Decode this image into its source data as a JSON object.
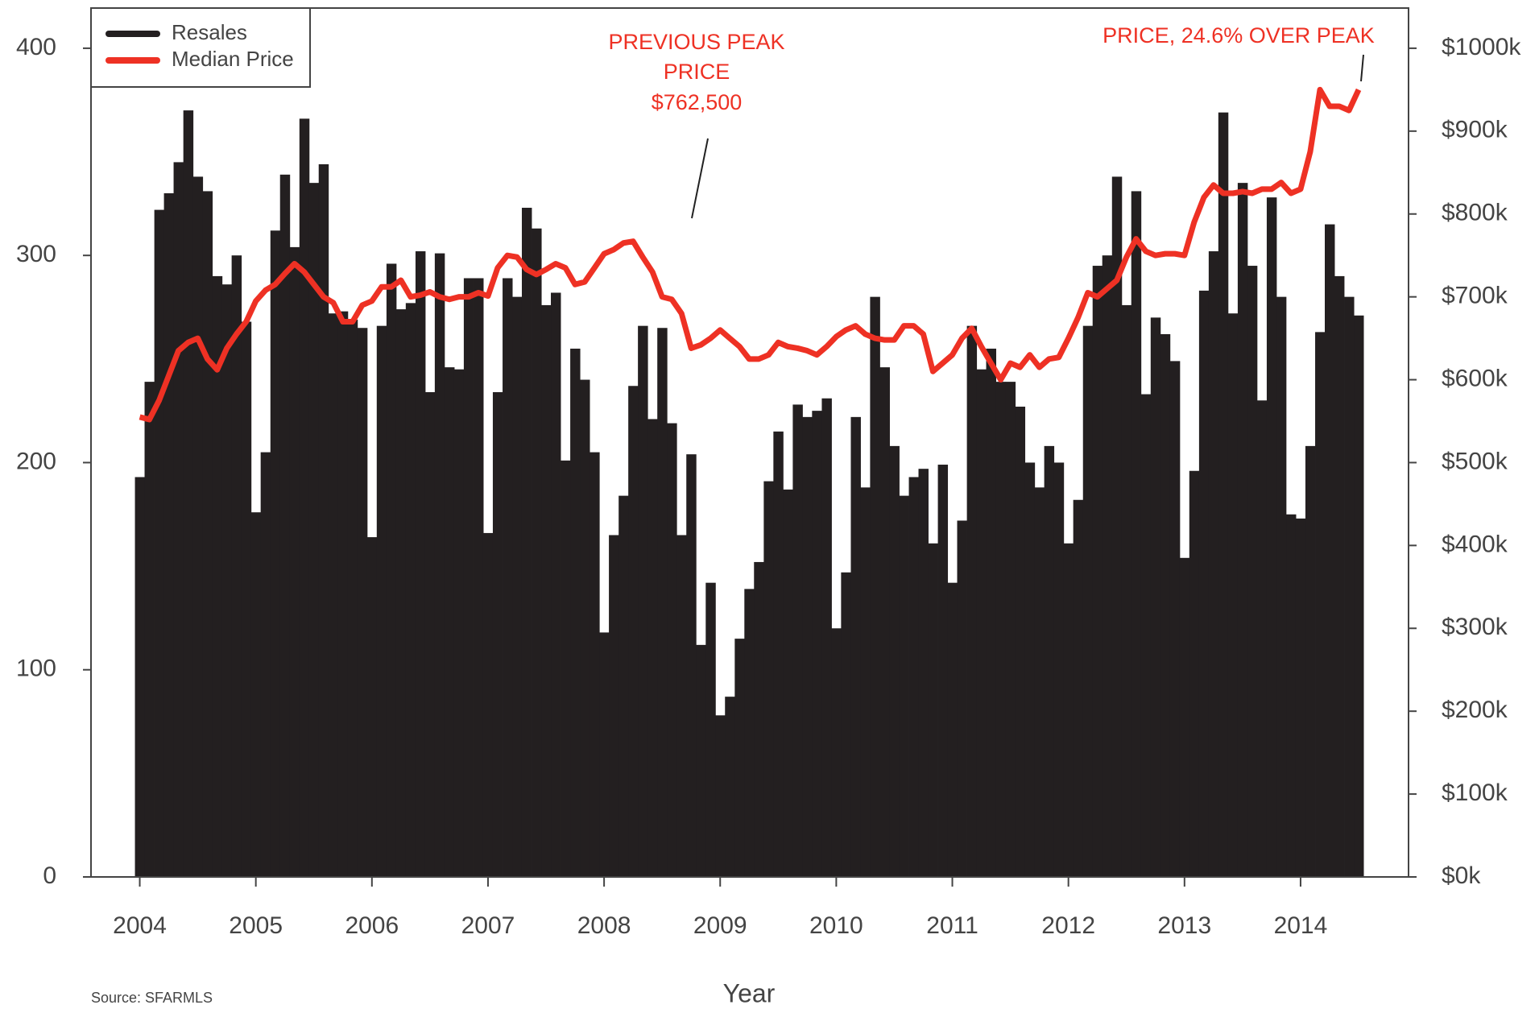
{
  "chart_data": {
    "type": "bar+line",
    "xlabel": "Year",
    "source": "Source: SFARMLS",
    "annotations": [
      [
        "PREVIOUS PEAK",
        "PRICE",
        "$762,500"
      ],
      [
        "PRICE, 24.6% OVER PEAK"
      ]
    ],
    "x": [
      2004,
      2004.083,
      2004.167,
      2004.25,
      2004.333,
      2004.417,
      2004.5,
      2004.583,
      2004.667,
      2004.75,
      2004.833,
      2004.917,
      2005,
      2005.083,
      2005.167,
      2005.25,
      2005.333,
      2005.417,
      2005.5,
      2005.583,
      2005.667,
      2005.75,
      2005.833,
      2005.917,
      2006,
      2006.083,
      2006.167,
      2006.25,
      2006.333,
      2006.417,
      2006.5,
      2006.583,
      2006.667,
      2006.75,
      2006.833,
      2006.917,
      2007,
      2007.083,
      2007.167,
      2007.25,
      2007.333,
      2007.417,
      2007.5,
      2007.583,
      2007.667,
      2007.75,
      2007.833,
      2007.917,
      2008,
      2008.083,
      2008.167,
      2008.25,
      2008.333,
      2008.417,
      2008.5,
      2008.583,
      2008.667,
      2008.75,
      2008.833,
      2008.917,
      2009,
      2009.083,
      2009.167,
      2009.25,
      2009.333,
      2009.417,
      2009.5,
      2009.583,
      2009.667,
      2009.75,
      2009.833,
      2009.917,
      2010,
      2010.083,
      2010.167,
      2010.25,
      2010.333,
      2010.417,
      2010.5,
      2010.583,
      2010.667,
      2010.75,
      2010.833,
      2010.917,
      2011,
      2011.083,
      2011.167,
      2011.25,
      2011.333,
      2011.417,
      2011.5,
      2011.583,
      2011.667,
      2011.75,
      2011.833,
      2011.917,
      2012,
      2012.083,
      2012.167,
      2012.25,
      2012.333,
      2012.417,
      2012.5,
      2012.583,
      2012.667,
      2012.75,
      2012.833,
      2012.917,
      2013,
      2013.083,
      2013.167,
      2013.25,
      2013.333,
      2013.417,
      2013.5,
      2013.583,
      2013.667,
      2013.75,
      2013.833,
      2013.917,
      2014,
      2014.083,
      2014.167,
      2014.25,
      2014.333,
      2014.417,
      2014.5
    ],
    "series": [
      {
        "name": "Resales",
        "color": "#231f20",
        "kind": "bar",
        "values": [
          193,
          239,
          322,
          330,
          345,
          370,
          338,
          331,
          290,
          286,
          300,
          268,
          176,
          205,
          312,
          339,
          304,
          366,
          335,
          344,
          272,
          273,
          269,
          265,
          164,
          266,
          296,
          274,
          277,
          302,
          234,
          301,
          246,
          245,
          289,
          289,
          166,
          234,
          289,
          280,
          323,
          313,
          276,
          282,
          201,
          255,
          240,
          205,
          118,
          165,
          184,
          237,
          266,
          221,
          265,
          219,
          165,
          204,
          112,
          142,
          78,
          87,
          115,
          139,
          152,
          191,
          215,
          187,
          228,
          222,
          225,
          231,
          120,
          147,
          222,
          188,
          280,
          246,
          208,
          184,
          193,
          197,
          161,
          199,
          142,
          172,
          266,
          245,
          255,
          239,
          239,
          227,
          200,
          188,
          208,
          200,
          161,
          182,
          266,
          295,
          300,
          338,
          276,
          331,
          233,
          270,
          262,
          249,
          154,
          196,
          283,
          302,
          369,
          272,
          335,
          295,
          230,
          328,
          280,
          175,
          173,
          208,
          263,
          315,
          290,
          280,
          271
        ]
      },
      {
        "name": "Median Price",
        "color": "#ee3124",
        "kind": "line",
        "axis": "y2",
        "values": [
          555,
          552,
          575,
          605,
          635,
          645,
          650,
          625,
          612,
          638,
          655,
          670,
          695,
          708,
          715,
          728,
          740,
          730,
          715,
          700,
          693,
          670,
          670,
          690,
          695,
          712,
          712,
          720,
          700,
          702,
          706,
          700,
          697,
          700,
          700,
          705,
          701,
          735,
          750,
          748,
          733,
          727,
          733,
          740,
          735,
          715,
          718,
          735,
          752,
          757,
          765,
          767,
          748,
          730,
          700,
          697,
          680,
          638,
          642,
          650,
          660,
          650,
          640,
          625,
          625,
          630,
          645,
          640,
          638,
          635,
          630,
          640,
          652,
          660,
          665,
          655,
          650,
          648,
          648,
          665,
          665,
          655,
          610,
          620,
          630,
          650,
          662,
          640,
          620,
          600,
          620,
          615,
          630,
          615,
          625,
          627,
          650,
          675,
          705,
          700,
          710,
          720,
          748,
          770,
          755,
          750,
          752,
          752,
          750,
          790,
          820,
          835,
          825,
          825,
          827,
          825,
          830,
          830,
          838,
          825,
          830,
          875,
          950,
          930,
          930,
          925,
          950
        ]
      }
    ],
    "xlim": [
      2003.58,
      2014.93
    ],
    "xticks": [
      2004,
      2005,
      2006,
      2007,
      2008,
      2009,
      2010,
      2011,
      2012,
      2013,
      2014
    ],
    "ylim": [
      0,
      419.4
    ],
    "yticks": [
      0,
      100,
      200,
      300,
      400
    ],
    "y2lim": [
      0,
      1048.5
    ],
    "y2ticks": [
      {
        "value": 0,
        "label": "$0k"
      },
      {
        "value": 100,
        "label": "$100k"
      },
      {
        "value": 200,
        "label": "$200k"
      },
      {
        "value": 300,
        "label": "$300k"
      },
      {
        "value": 400,
        "label": "$400k"
      },
      {
        "value": 500,
        "label": "$500k"
      },
      {
        "value": 600,
        "label": "$600k"
      },
      {
        "value": 700,
        "label": "$700k"
      },
      {
        "value": 800,
        "label": "$800k"
      },
      {
        "value": 900,
        "label": "$900k"
      },
      {
        "value": 1000,
        "label": "$1000k"
      }
    ],
    "legend": "top-left"
  }
}
